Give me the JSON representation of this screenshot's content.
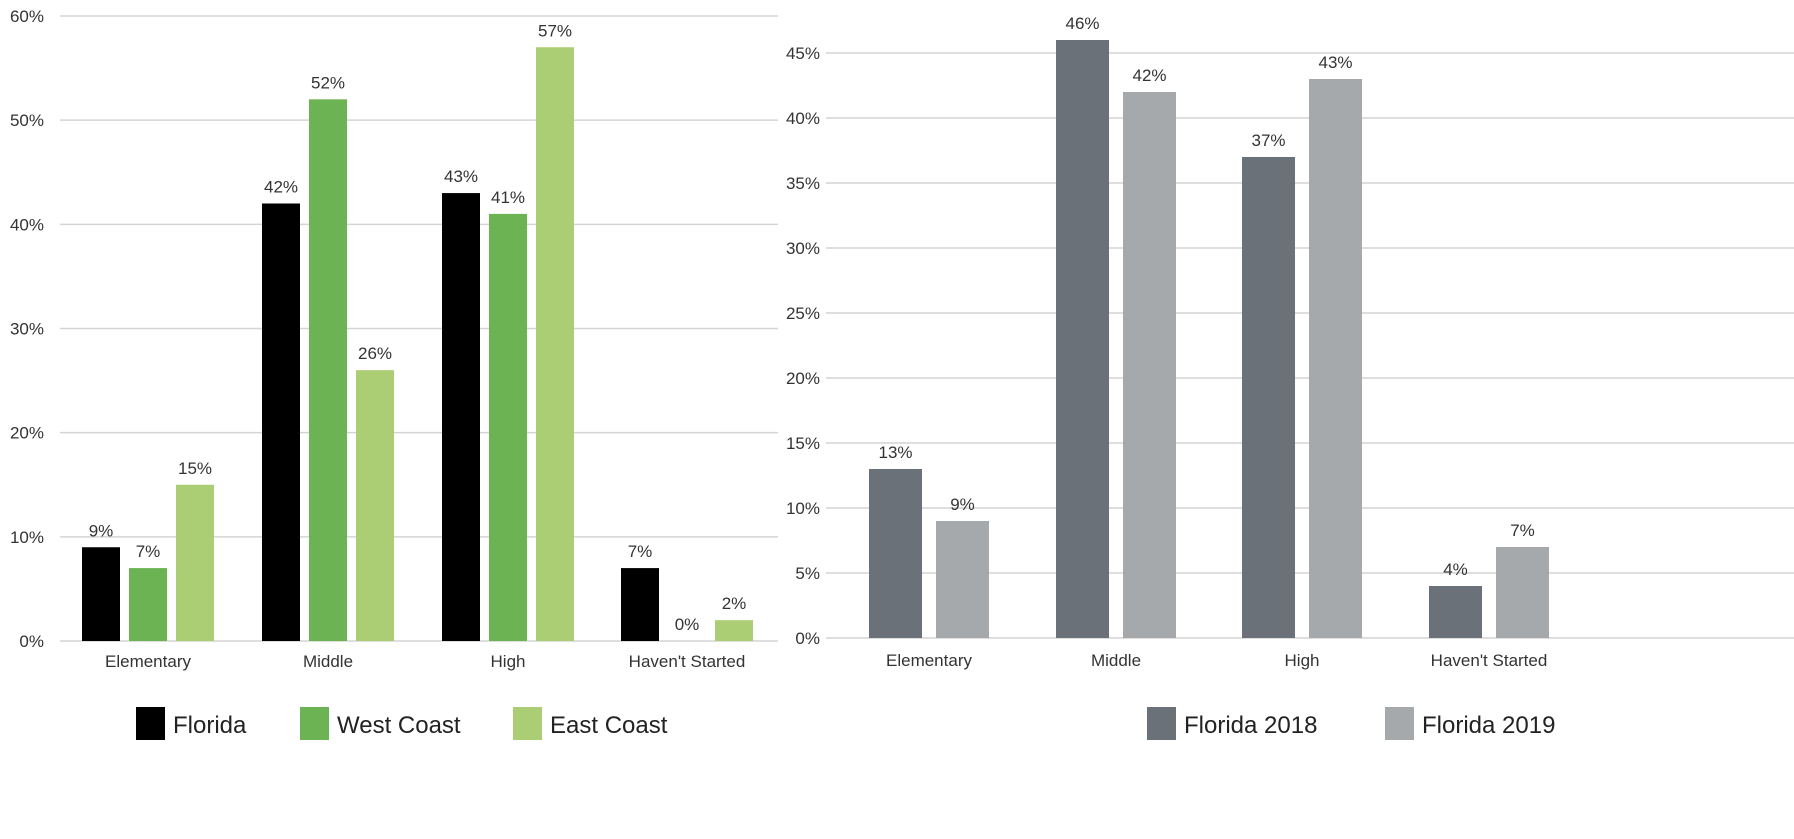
{
  "chart_data": [
    {
      "type": "bar",
      "categories": [
        "Elementary",
        "Middle",
        "High",
        "Haven't Started"
      ],
      "series": [
        {
          "name": "Florida",
          "color": "#000000",
          "values": [
            9,
            42,
            43,
            7
          ]
        },
        {
          "name": "West Coast",
          "color": "#6cb354",
          "values": [
            7,
            52,
            41,
            0
          ]
        },
        {
          "name": "East Coast",
          "color": "#abcd74",
          "values": [
            15,
            26,
            57,
            2
          ]
        }
      ],
      "yticks": [
        "0%",
        "10%",
        "20%",
        "30%",
        "40%",
        "50%",
        "60%"
      ],
      "ylim": [
        0,
        60
      ],
      "value_suffix": "%",
      "legend_position": "bottom",
      "grid": true
    },
    {
      "type": "bar",
      "categories": [
        "Elementary",
        "Middle",
        "High",
        "Haven't Started"
      ],
      "series": [
        {
          "name": "Florida 2018",
          "color": "#6b7178",
          "values": [
            13,
            46,
            37,
            4
          ]
        },
        {
          "name": "Florida 2019",
          "color": "#a6a9ac",
          "values": [
            9,
            42,
            43,
            7
          ]
        }
      ],
      "yticks": [
        "0%",
        "5%",
        "10%",
        "15%",
        "20%",
        "25%",
        "30%",
        "35%",
        "40%",
        "45%"
      ],
      "ylim": [
        0,
        45
      ],
      "value_suffix": "%",
      "legend_position": "bottom",
      "grid": true
    }
  ]
}
